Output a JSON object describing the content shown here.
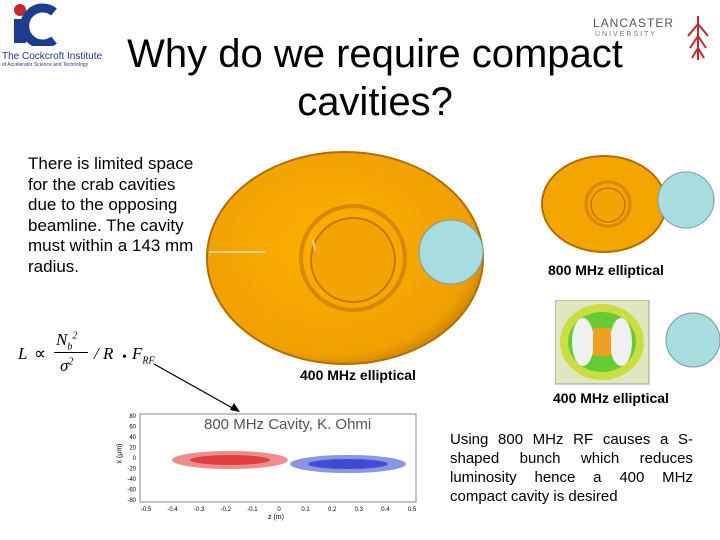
{
  "slide": {
    "title_line1": "Why do we require compact",
    "title_line2": "cavities?",
    "intro_text": "There is limited space for the crab cavities due to the opposing beamline. The cavity must within a 143 mm radius.",
    "caption_800": "800 MHz elliptical",
    "caption_400_left": "400 MHz elliptical",
    "caption_400_right": "400 MHz elliptical",
    "explain_text": "Using 800 MHz RF causes a S-shaped bunch which reduces luminosity hence a 400 MHz compact cavity is desired"
  },
  "logos": {
    "cockcroft_line1": "The Cockcroft Institute",
    "cockcroft_line2": "of Accelerator Science and Technology",
    "lancaster_line1": "LANCASTER",
    "lancaster_line2": "UNIVERSITY"
  },
  "plot": {
    "title": "800 MHz Cavity, K. Ohmi",
    "xlabel": "z (m)",
    "ylabel": "x (μm)",
    "x_ticks": [
      "-0.5",
      "-0.4",
      "-0.3",
      "-0.2",
      "-0.1",
      "0",
      "0.1",
      "0.2",
      "0.3",
      "0.4",
      "0.5"
    ],
    "y_ticks": [
      "80",
      "60",
      "40",
      "20",
      "0",
      "-20",
      "-40",
      "-60",
      "-80"
    ]
  },
  "formula": {
    "lhs": "L",
    "prop": "∝",
    "num": "N",
    "num_sub": "b",
    "num_sup": "2",
    "den": "σ",
    "den_sup": "2",
    "slash_r": "/ R",
    "dot": "•",
    "f": "F",
    "f_sub": "RF"
  },
  "colors": {
    "cavity_orange": "#f5a500",
    "beam_pipe_blue": "#a8dde0",
    "bunch_red": "#e03030",
    "bunch_blue": "#3040d0",
    "logo_blue": "#1d3c8f",
    "logo_red": "#c0282d"
  }
}
